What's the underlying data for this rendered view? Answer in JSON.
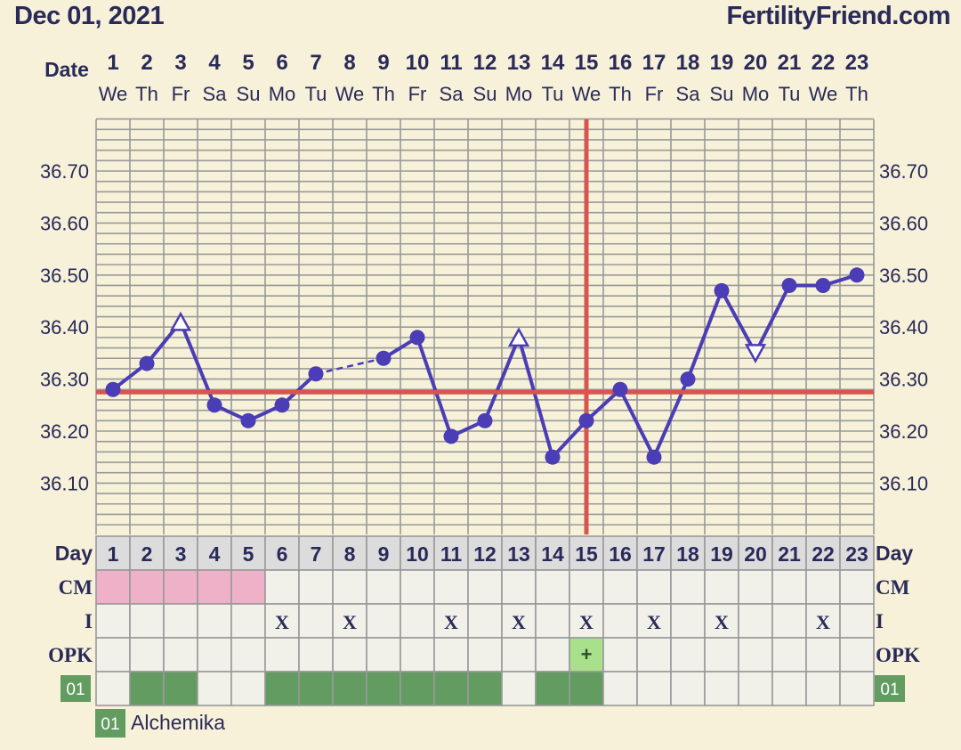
{
  "header": {
    "date_title": "Dec 01, 2021",
    "site_name": "FertilityFriend.com"
  },
  "labels": {
    "date": "Date",
    "day": "Day",
    "cm": "CM",
    "intercourse": "I",
    "opk": "OPK",
    "custom_code": "01",
    "legend_code": "01",
    "legend_name": "Alchemika",
    "opk_positive_mark": "+",
    "intercourse_mark": "X"
  },
  "colors": {
    "line": "#4a3db5",
    "coverline": "#d9534f",
    "grid": "#999999",
    "background": "#f6f1d8",
    "cm_pink": "#efb1c8",
    "custom_green": "#639c61",
    "opk_green": "#a8e08b",
    "cell": "#f1f1ea",
    "day_row": "#dcdcdc",
    "text": "#2a2a5a"
  },
  "chart_data": {
    "type": "line",
    "ylim": [
      36.0,
      36.8
    ],
    "y_ticks": [
      "36.10",
      "36.20",
      "36.30",
      "36.40",
      "36.50",
      "36.60",
      "36.70"
    ],
    "coverline": 36.275,
    "ovulation_day": 15,
    "dates": [
      "1",
      "2",
      "3",
      "4",
      "5",
      "6",
      "7",
      "8",
      "9",
      "10",
      "11",
      "12",
      "13",
      "14",
      "15",
      "16",
      "17",
      "18",
      "19",
      "20",
      "21",
      "22",
      "23"
    ],
    "weekdays": [
      "We",
      "Th",
      "Fr",
      "Sa",
      "Su",
      "Mo",
      "Tu",
      "We",
      "Th",
      "Fr",
      "Sa",
      "Su",
      "Mo",
      "Tu",
      "We",
      "Th",
      "Fr",
      "Sa",
      "Su",
      "Mo",
      "Tu",
      "We",
      "Th"
    ],
    "cycle_days": [
      "1",
      "2",
      "3",
      "4",
      "5",
      "6",
      "7",
      "8",
      "9",
      "10",
      "11",
      "12",
      "13",
      "14",
      "15",
      "16",
      "17",
      "18",
      "19",
      "20",
      "21",
      "22",
      "23"
    ],
    "temperatures": [
      36.28,
      36.33,
      36.41,
      36.25,
      36.22,
      36.25,
      36.31,
      null,
      36.34,
      36.38,
      36.19,
      36.22,
      36.38,
      36.15,
      36.22,
      36.28,
      36.15,
      36.3,
      36.47,
      36.35,
      36.48,
      36.48,
      36.5
    ],
    "point_markers": [
      "circle",
      "circle",
      "triangle-up",
      "circle",
      "circle",
      "circle",
      "circle",
      null,
      "circle",
      "circle",
      "circle",
      "circle",
      "triangle-up",
      "circle",
      "circle",
      "circle",
      "circle",
      "circle",
      "circle",
      "triangle-down",
      "circle",
      "circle",
      "circle"
    ],
    "dashed_segments": [
      [
        7,
        9
      ]
    ],
    "cm_days": [
      1,
      2,
      3,
      4,
      5
    ],
    "intercourse_days": [
      6,
      8,
      11,
      13,
      15,
      17,
      19,
      22
    ],
    "opk_positive_days": [
      15
    ],
    "custom_days": [
      2,
      3,
      6,
      7,
      8,
      9,
      10,
      11,
      12,
      14,
      15
    ]
  }
}
